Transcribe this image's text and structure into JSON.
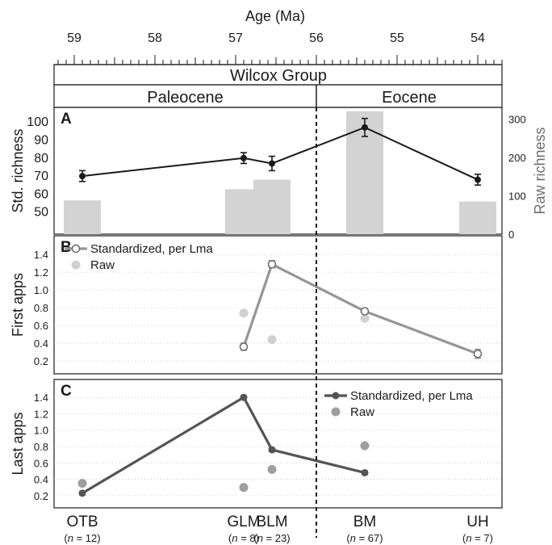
{
  "chart_data": {
    "type": "composite",
    "top_axis": {
      "label": "Age (Ma)",
      "reversed": true,
      "range": [
        59.25,
        53.7
      ],
      "major_ticks": [
        59,
        58,
        57,
        56,
        55,
        54
      ],
      "minor_step": 0.1
    },
    "group_label": "Wilcox Group",
    "periods": [
      {
        "name": "Paleocene",
        "from": 59.25,
        "to": 56.0
      },
      {
        "name": "Eocene",
        "from": 56.0,
        "to": 53.7
      }
    ],
    "boundary_age": 56.0,
    "sites": [
      {
        "name": "OTB",
        "n_label": "n",
        "n_value": "= 12)",
        "age": 58.9
      },
      {
        "name": "GLM",
        "n_label": "n",
        "n_value": "= 8)",
        "age": 56.9
      },
      {
        "name": "BLM",
        "n_label": "n",
        "n_value": "= 23)",
        "age": 56.55
      },
      {
        "name": "BM",
        "n_label": "n",
        "n_value": "= 67)",
        "age": 55.4
      },
      {
        "name": "UH",
        "n_label": "n",
        "n_value": "= 7)",
        "age": 54.0
      }
    ],
    "panels": [
      {
        "id": "A",
        "label": "A",
        "ylabel": "Std. richness",
        "ylim": [
          40,
          105
        ],
        "yticks": [
          50,
          60,
          70,
          80,
          90,
          100
        ],
        "y2label": "Raw richness",
        "y2lim": [
          0,
          330
        ],
        "y2ticks": [
          0,
          100,
          200,
          300
        ],
        "bars": {
          "name": "Raw richness",
          "color": "#d3d3d3",
          "width_ma": 0.46,
          "values": [
            {
              "site": "OTB",
              "value": 88
            },
            {
              "site": "GLM",
              "value": 117
            },
            {
              "site": "BLM",
              "value": 142
            },
            {
              "site": "BM",
              "value": 320
            },
            {
              "site": "UH",
              "value": 85
            }
          ]
        },
        "line": {
          "name": "Std. richness",
          "color": "#1a1a1a",
          "values": [
            {
              "site": "OTB",
              "value": 70,
              "err": 3
            },
            {
              "site": "GLM",
              "value": 80,
              "err": 3
            },
            {
              "site": "BLM",
              "value": 77,
              "err": 4
            },
            {
              "site": "BM",
              "value": 97,
              "err": 5
            },
            {
              "site": "UH",
              "value": 68,
              "err": 3
            }
          ]
        }
      },
      {
        "id": "B",
        "label": "B",
        "ylabel": "First apps",
        "ylim": [
          0.1,
          1.52
        ],
        "yticks": [
          0.2,
          0.4,
          0.6,
          0.8,
          1.0,
          1.2,
          1.4
        ],
        "ytick_labels": [
          "0.2",
          "0.4",
          "0.6",
          "0.8",
          "1.0",
          "1.2",
          "1.4"
        ],
        "grid": true,
        "legend_position": "top-left",
        "series": [
          {
            "name": "Standardized, per Lma",
            "style": "line-open-marker",
            "color": "#969696",
            "values": [
              {
                "site": "GLM",
                "value": 0.36,
                "err": 0.04
              },
              {
                "site": "BLM",
                "value": 1.29,
                "err": 0.04
              },
              {
                "site": "BM",
                "value": 0.76,
                "err": 0.02
              },
              {
                "site": "UH",
                "value": 0.28,
                "err": 0.05
              }
            ]
          },
          {
            "name": "Raw",
            "style": "points",
            "color": "#d0d0d0",
            "values": [
              {
                "site": "GLM",
                "value": 0.74
              },
              {
                "site": "BLM",
                "value": 0.44
              },
              {
                "site": "BM",
                "value": 0.68
              }
            ]
          }
        ]
      },
      {
        "id": "C",
        "label": "C",
        "ylabel": "Last apps",
        "ylim": [
          0.1,
          1.52
        ],
        "yticks": [
          0.2,
          0.4,
          0.6,
          0.8,
          1.0,
          1.2,
          1.4
        ],
        "ytick_labels": [
          "0.2",
          "0.4",
          "0.6",
          "0.8",
          "1.0",
          "1.2",
          "1.4"
        ],
        "grid": true,
        "legend_position": "top-right",
        "series": [
          {
            "name": "Standardized, per Lma",
            "style": "line-filled-marker",
            "color": "#555555",
            "values": [
              {
                "site": "OTB",
                "value": 0.23,
                "err": 0.02
              },
              {
                "site": "GLM",
                "value": 1.4,
                "err": 0.02
              },
              {
                "site": "BLM",
                "value": 0.76,
                "err": 0.02
              },
              {
                "site": "BM",
                "value": 0.48,
                "err": 0.02
              }
            ]
          },
          {
            "name": "Raw",
            "style": "points",
            "color": "#9e9e9e",
            "values": [
              {
                "site": "OTB",
                "value": 0.35
              },
              {
                "site": "GLM",
                "value": 0.3
              },
              {
                "site": "BLM",
                "value": 0.52
              },
              {
                "site": "BM",
                "value": 0.81
              }
            ]
          }
        ]
      }
    ]
  }
}
